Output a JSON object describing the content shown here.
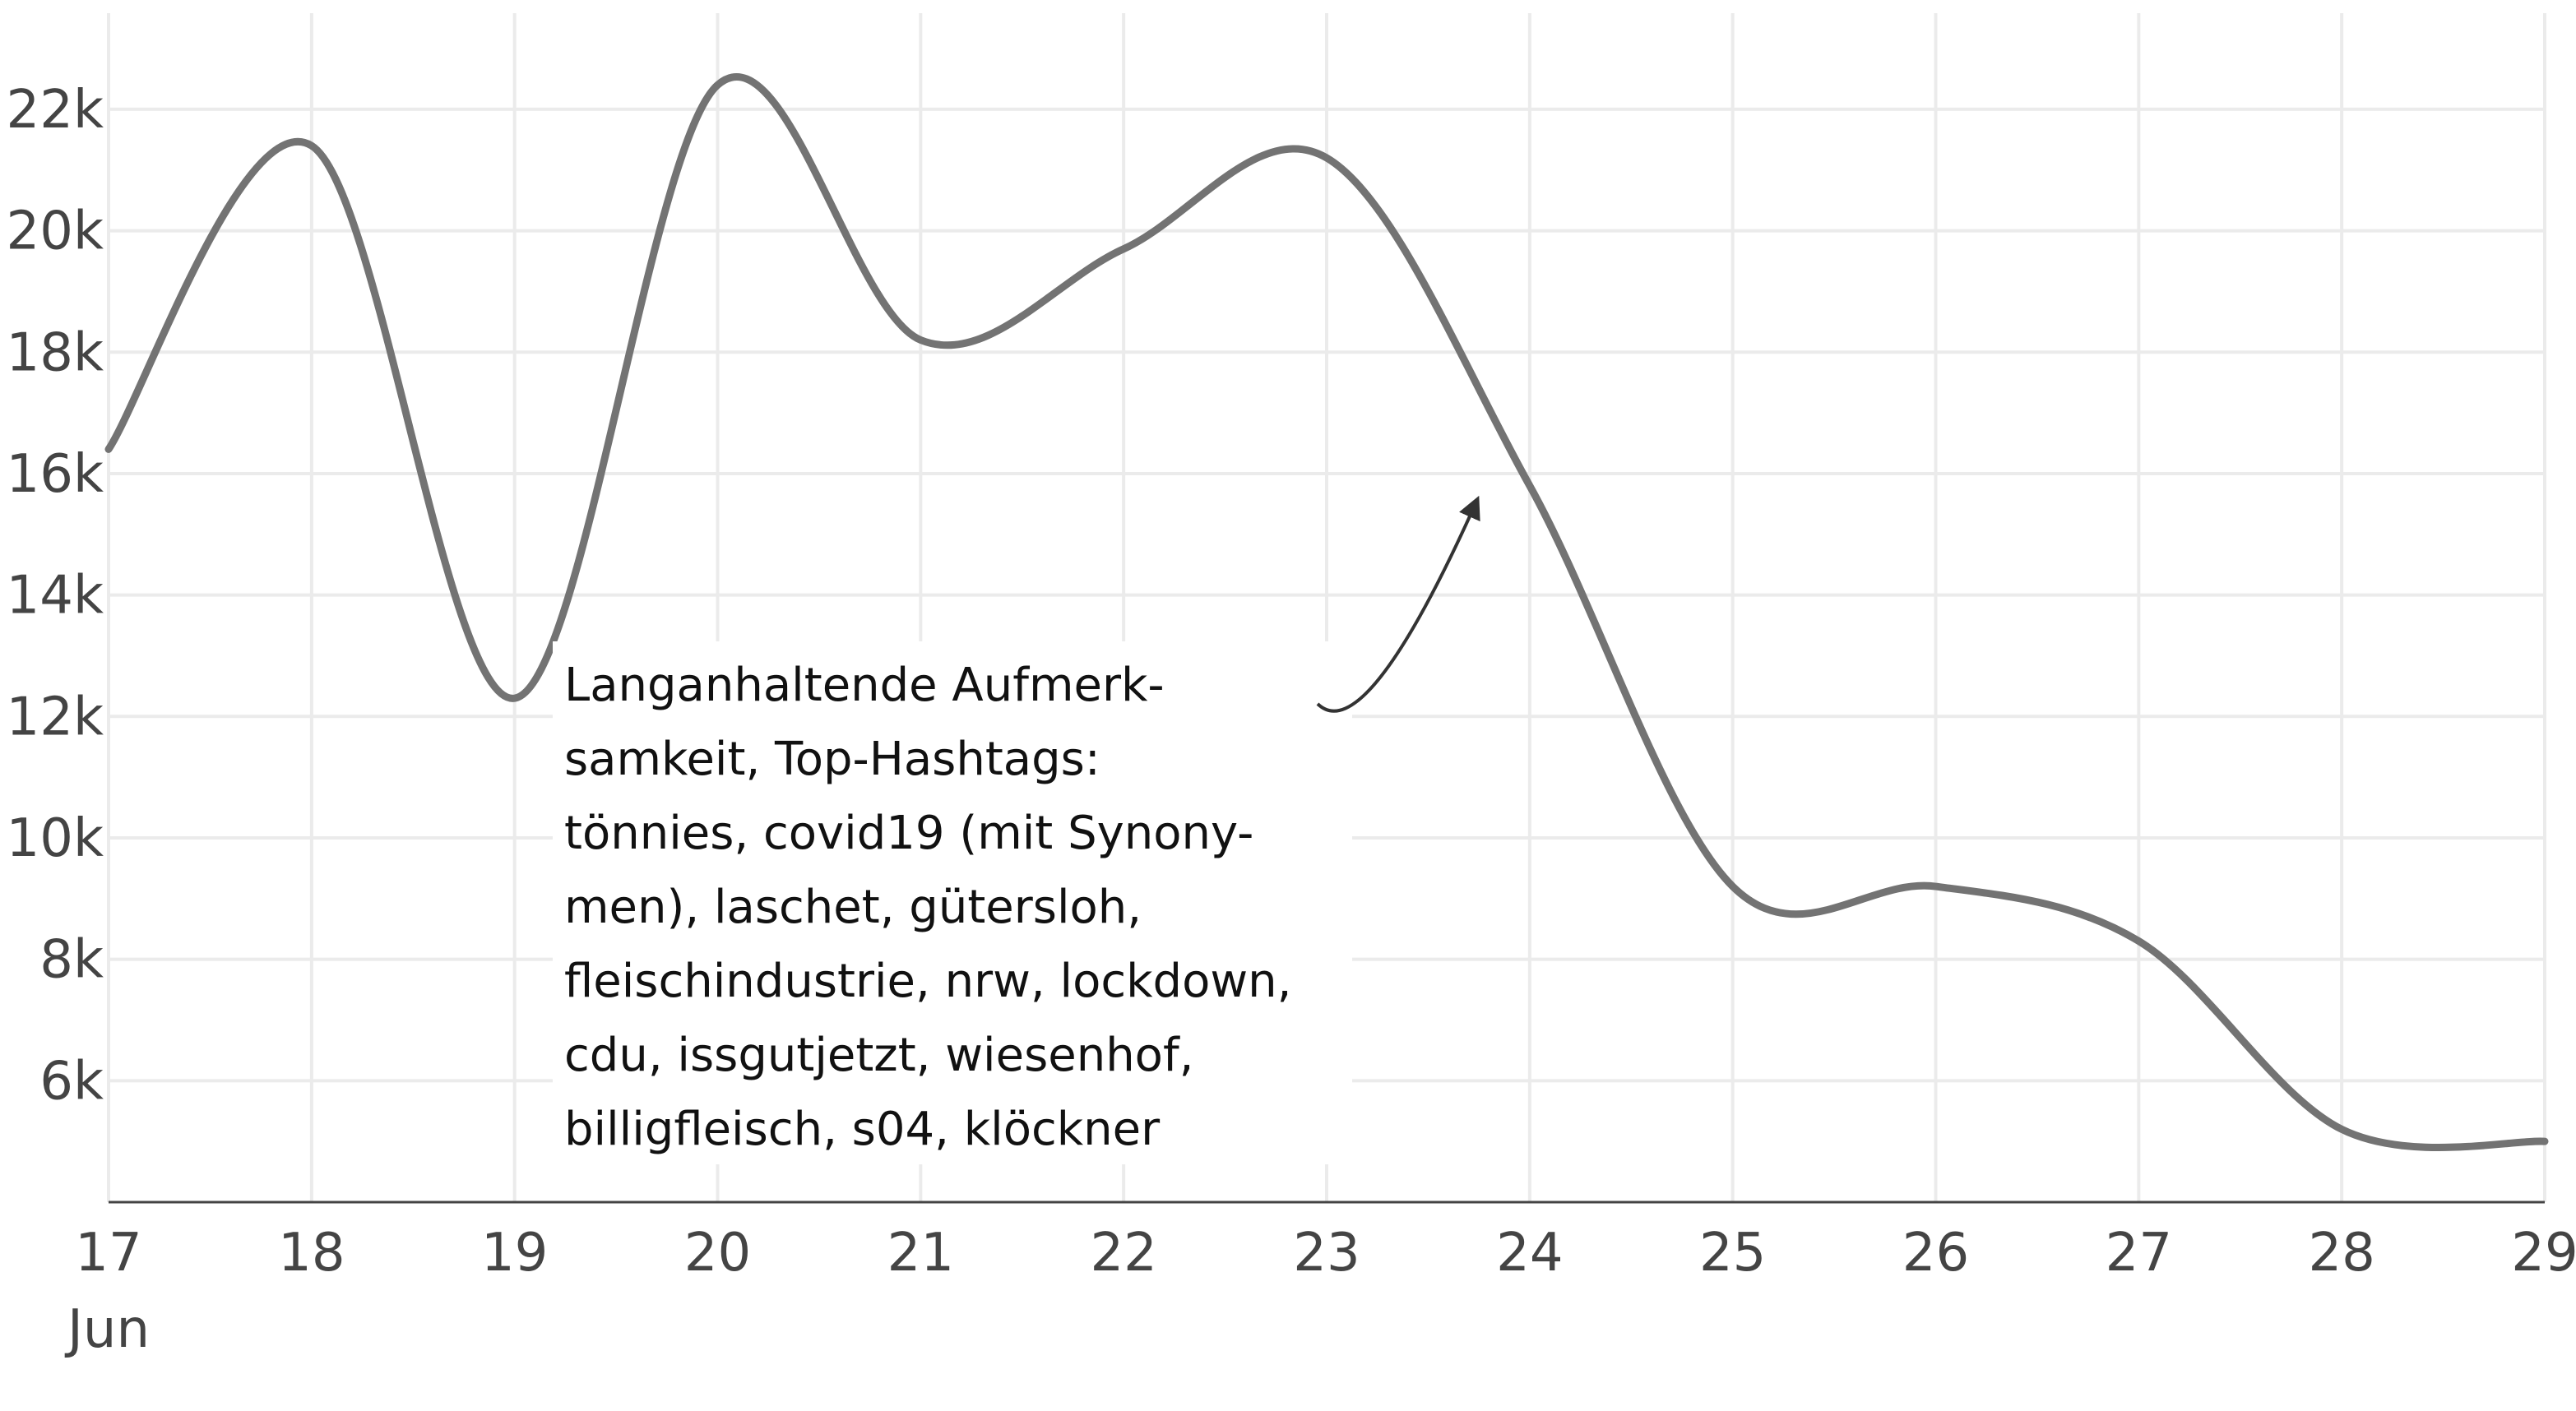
{
  "chart_data": {
    "type": "line",
    "title": "",
    "xlabel": "",
    "ylabel": "",
    "x_ticks": [
      "17",
      "18",
      "19",
      "20",
      "21",
      "22",
      "23",
      "24",
      "25",
      "26",
      "27",
      "28",
      "29"
    ],
    "x_month_label": "Jun",
    "y_ticks": [
      "6k",
      "8k",
      "10k",
      "12k",
      "14k",
      "16k",
      "18k",
      "20k",
      "22k"
    ],
    "ylim": [
      4000,
      23800
    ],
    "xlim": [
      "2020-06-17",
      "2020-06-29"
    ],
    "grid": true,
    "series": [
      {
        "color": "#737373",
        "x": [
          "2020-06-17",
          "2020-06-18",
          "2020-06-19",
          "2020-06-20",
          "2020-06-21",
          "2020-06-22",
          "2020-06-23",
          "2020-06-24",
          "2020-06-25",
          "2020-06-26",
          "2020-06-27",
          "2020-06-28",
          "2020-06-29"
        ],
        "values": [
          16400,
          21400,
          12300,
          22400,
          18200,
          19700,
          21200,
          15800,
          9200,
          9200,
          8300,
          5200,
          5000
        ]
      }
    ],
    "annotation": {
      "lines": [
        "Langanhaltende Aufmerk-",
        "samkeit, Top-Hashtags:",
        "tönnies, covid19 (mit Synony-",
        "men), laschet, gütersloh,",
        "fleischindustrie, nrw, lockdown,",
        "cdu, issgutjetzt, wiesenhof,",
        "billigfleisch, s04, klöckner"
      ]
    }
  }
}
